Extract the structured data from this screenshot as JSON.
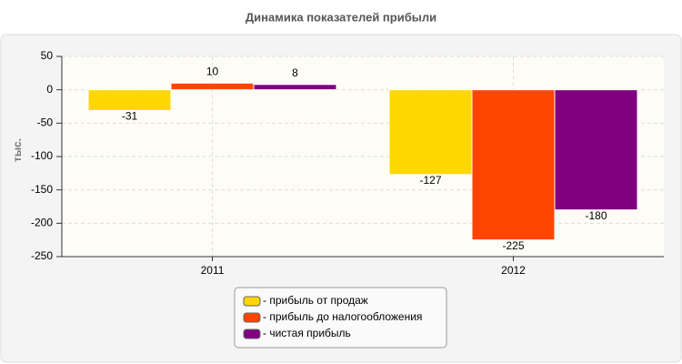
{
  "chart_data": {
    "type": "bar",
    "title": "Динамика показателей прибыли",
    "y_label": "тыс.",
    "categories": [
      "2011",
      "2012"
    ],
    "series": [
      {
        "name": "- прибыль от продаж",
        "color": "#ffd700",
        "values": [
          -31,
          -127
        ]
      },
      {
        "name": "- прибыль до налогообложения",
        "color": "#ff4500",
        "values": [
          10,
          -225
        ]
      },
      {
        "name": "- чистая прибыль",
        "color": "#800080",
        "values": [
          8,
          -180
        ]
      }
    ],
    "ylim": [
      -250,
      50
    ],
    "yticks": [
      -250,
      -200,
      -150,
      -100,
      -50,
      0,
      50
    ],
    "grid": true
  }
}
